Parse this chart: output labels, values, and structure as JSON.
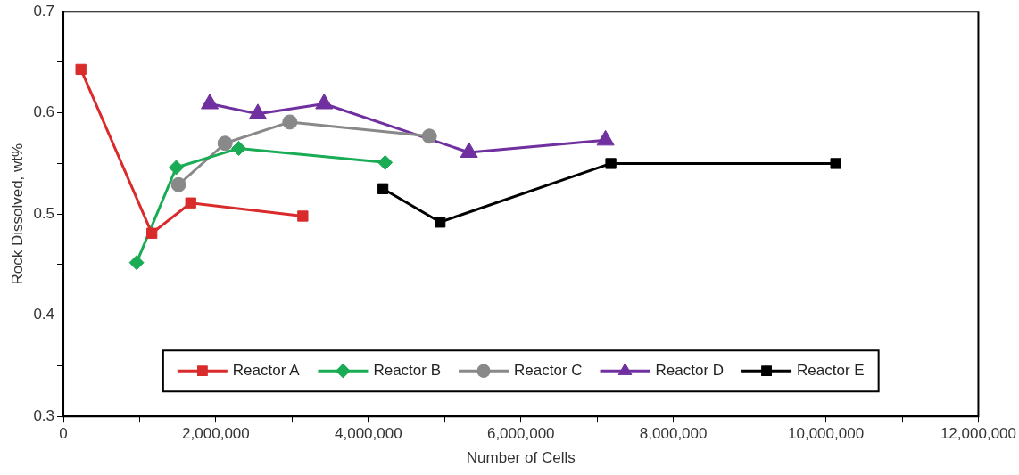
{
  "chart_data": {
    "type": "line",
    "xlabel": "Number of Cells",
    "ylabel": "Rock Dissolved, wt%",
    "xlim": [
      0,
      12000000
    ],
    "xticks": [
      0,
      {
        "value": 1000000,
        "label": null
      },
      {
        "value": 2000000,
        "label": "2,000,000"
      },
      {
        "value": 3000000,
        "label": null
      },
      {
        "value": 4000000,
        "label": "4,000,000"
      },
      {
        "value": 5000000,
        "label": null
      },
      {
        "value": 6000000,
        "label": "6,000,000"
      },
      {
        "value": 7000000,
        "label": null
      },
      {
        "value": 8000000,
        "label": "8,000,000"
      },
      {
        "value": 9000000,
        "label": null
      },
      {
        "value": 10000000,
        "label": "10,000,000"
      },
      {
        "value": 11000000,
        "label": null
      },
      {
        "value": 12000000,
        "label": "12,000,000"
      }
    ],
    "ylim": [
      0.3,
      0.7
    ],
    "yticks": [
      0.3,
      {
        "value": 0.35,
        "label": null
      },
      0.4,
      {
        "value": 0.45,
        "label": null
      },
      0.5,
      {
        "value": 0.55,
        "label": null
      },
      0.6,
      {
        "value": 0.65,
        "label": null
      },
      0.7
    ],
    "grid": false,
    "legend": "bottom",
    "line_style": "solid",
    "series": [
      {
        "name": "Reactor A",
        "color": "#d92b2b",
        "marker": "square",
        "x": [
          230000,
          1160000,
          1670000,
          3140000
        ],
        "values": [
          0.643,
          0.481,
          0.511,
          0.498
        ]
      },
      {
        "name": "Reactor B",
        "color": "#1aab55",
        "marker": "diamond",
        "x": [
          960000,
          1480000,
          2300000,
          4220000
        ],
        "values": [
          0.452,
          0.546,
          0.565,
          0.551
        ]
      },
      {
        "name": "Reactor C",
        "color": "#898989",
        "marker": "circle",
        "x": [
          1510000,
          2120000,
          2970000,
          4800000
        ],
        "values": [
          0.529,
          0.57,
          0.591,
          0.577
        ]
      },
      {
        "name": "Reactor D",
        "color": "#7030a0",
        "marker": "triangle",
        "x": [
          1920000,
          2550000,
          3420000,
          5320000,
          7110000
        ],
        "values": [
          0.609,
          0.599,
          0.609,
          0.561,
          0.573
        ]
      },
      {
        "name": "Reactor E",
        "color": "#000000",
        "marker": "square",
        "x": [
          4190000,
          4940000,
          7180000,
          10130000
        ],
        "values": [
          0.525,
          0.492,
          0.55,
          0.55
        ]
      }
    ]
  }
}
